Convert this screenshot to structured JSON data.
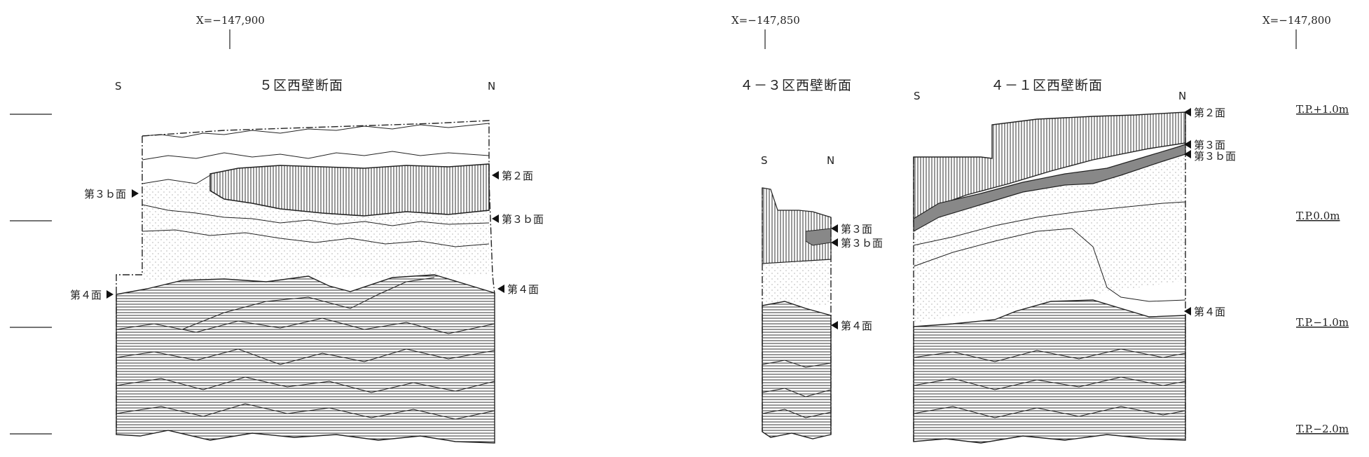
{
  "coordinates": [
    {
      "label": "X=−147,900"
    },
    {
      "label": "X=−147,850"
    },
    {
      "label": "X=−147,800"
    }
  ],
  "levels": [
    {
      "label": "T.P.+1.0m"
    },
    {
      "label": "T.P.0.0m"
    },
    {
      "label": "T.P.−1.0m"
    },
    {
      "label": "T.P.−2.0m"
    }
  ],
  "sections": [
    {
      "title": "５区西壁断面",
      "south": "S",
      "north": "N",
      "layer_labels": {
        "left_3b": "第３ｂ面",
        "left_4": "第４面",
        "right_2": "第２面",
        "right_3b": "第３ｂ面",
        "right_4": "第４面"
      }
    },
    {
      "title": "４－３区西壁断面",
      "south": "S",
      "north": "N",
      "layer_labels": {
        "right_3": "第３面",
        "right_3b": "第３ｂ面",
        "right_4": "第４面"
      }
    },
    {
      "title": "４－１区西壁断面",
      "south": "S",
      "north": "N",
      "layer_labels": {
        "right_2": "第２面",
        "right_3": "第３面",
        "right_3b": "第３ｂ面",
        "right_4": "第４面"
      }
    }
  ]
}
